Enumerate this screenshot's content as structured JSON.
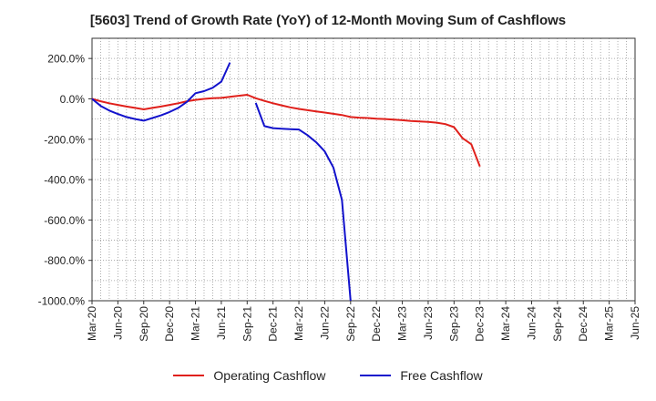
{
  "chart_data": {
    "type": "line",
    "title": "[5603]  Trend of Growth Rate (YoY) of 12-Month Moving Sum of Cashflows",
    "xlabel": "",
    "ylabel": "",
    "ylim": [
      -1000,
      300
    ],
    "yticks": [
      -1000,
      -800,
      -600,
      -400,
      -200,
      0,
      200
    ],
    "ytick_labels": [
      "-1000.0%",
      "-800.0%",
      "-600.0%",
      "-400.0%",
      "-200.0%",
      "0.0%",
      "200.0%"
    ],
    "xticks": [
      "Mar-20",
      "Jun-20",
      "Sep-20",
      "Dec-20",
      "Mar-21",
      "Jun-21",
      "Sep-21",
      "Dec-21",
      "Mar-22",
      "Jun-22",
      "Sep-22",
      "Dec-22",
      "Mar-23",
      "Jun-23",
      "Sep-23",
      "Dec-23",
      "Mar-24",
      "Jun-24",
      "Sep-24",
      "Dec-24",
      "Mar-25",
      "Jun-25"
    ],
    "grid": true,
    "legend_position": "bottom",
    "series": [
      {
        "name": "Operating Cashflow",
        "color": "#e0201b",
        "x": [
          "Mar-20",
          "Apr-20",
          "May-20",
          "Jun-20",
          "Jul-20",
          "Aug-20",
          "Sep-20",
          "Oct-20",
          "Nov-20",
          "Dec-20",
          "Jan-21",
          "Feb-21",
          "Mar-21",
          "Apr-21",
          "May-21",
          "Jun-21",
          "Jul-21",
          "Aug-21",
          "Sep-21",
          "Oct-21",
          "Nov-21",
          "Dec-21",
          "Jan-22",
          "Feb-22",
          "Mar-22",
          "Apr-22",
          "May-22",
          "Jun-22",
          "Jul-22",
          "Aug-22",
          "Sep-22",
          "Oct-22",
          "Nov-22",
          "Dec-22",
          "Jan-23",
          "Feb-23",
          "Mar-23",
          "Apr-23",
          "May-23",
          "Jun-23",
          "Jul-23",
          "Aug-23",
          "Sep-23",
          "Oct-23",
          "Nov-23"
        ],
        "values": [
          0,
          -12,
          -22,
          -30,
          -38,
          -45,
          -52,
          -45,
          -38,
          -30,
          -22,
          -12,
          -5,
          0,
          3,
          5,
          10,
          15,
          20,
          3,
          -10,
          -22,
          -32,
          -42,
          -50,
          -56,
          -62,
          -68,
          -74,
          -80,
          -90,
          -93,
          -95,
          -98,
          -100,
          -103,
          -106,
          -110,
          -112,
          -114,
          -118,
          -125,
          -140,
          -195,
          -225
        ]
      },
      {
        "name": "Free Cashflow",
        "color": "#1212cc",
        "x": [
          "Mar-20",
          "Apr-20",
          "May-20",
          "Jun-20",
          "Jul-20",
          "Aug-20",
          "Sep-20",
          "Oct-20",
          "Nov-20",
          "Dec-20",
          "Jan-21",
          "Feb-21",
          "Mar-21",
          "Apr-21",
          "May-21",
          "Jun-21",
          "Jul-21"
        ],
        "values": [
          0,
          -35,
          -58,
          -75,
          -90,
          -100,
          -108,
          -95,
          -82,
          -65,
          -45,
          -15,
          28,
          38,
          55,
          85,
          180
        ]
      },
      {
        "name": "Free Cashflow (cont.)",
        "color": "#1212cc",
        "x": [
          "Oct-21",
          "Nov-21",
          "Dec-21",
          "Jan-22",
          "Feb-22",
          "Mar-22",
          "Apr-22",
          "May-22",
          "Jun-22",
          "Jul-22",
          "Aug-22",
          "Sep-22"
        ],
        "values": [
          -20,
          -135,
          -145,
          -148,
          -150,
          -152,
          -180,
          -215,
          -260,
          -340,
          -500,
          -1000
        ]
      }
    ],
    "extra_points": {
      "Operating Cashflow": {
        "x": "Dec-23",
        "value": -335
      }
    }
  },
  "legend": [
    {
      "label": "Operating Cashflow",
      "color": "#e0201b"
    },
    {
      "label": "Free Cashflow",
      "color": "#1212cc"
    }
  ]
}
